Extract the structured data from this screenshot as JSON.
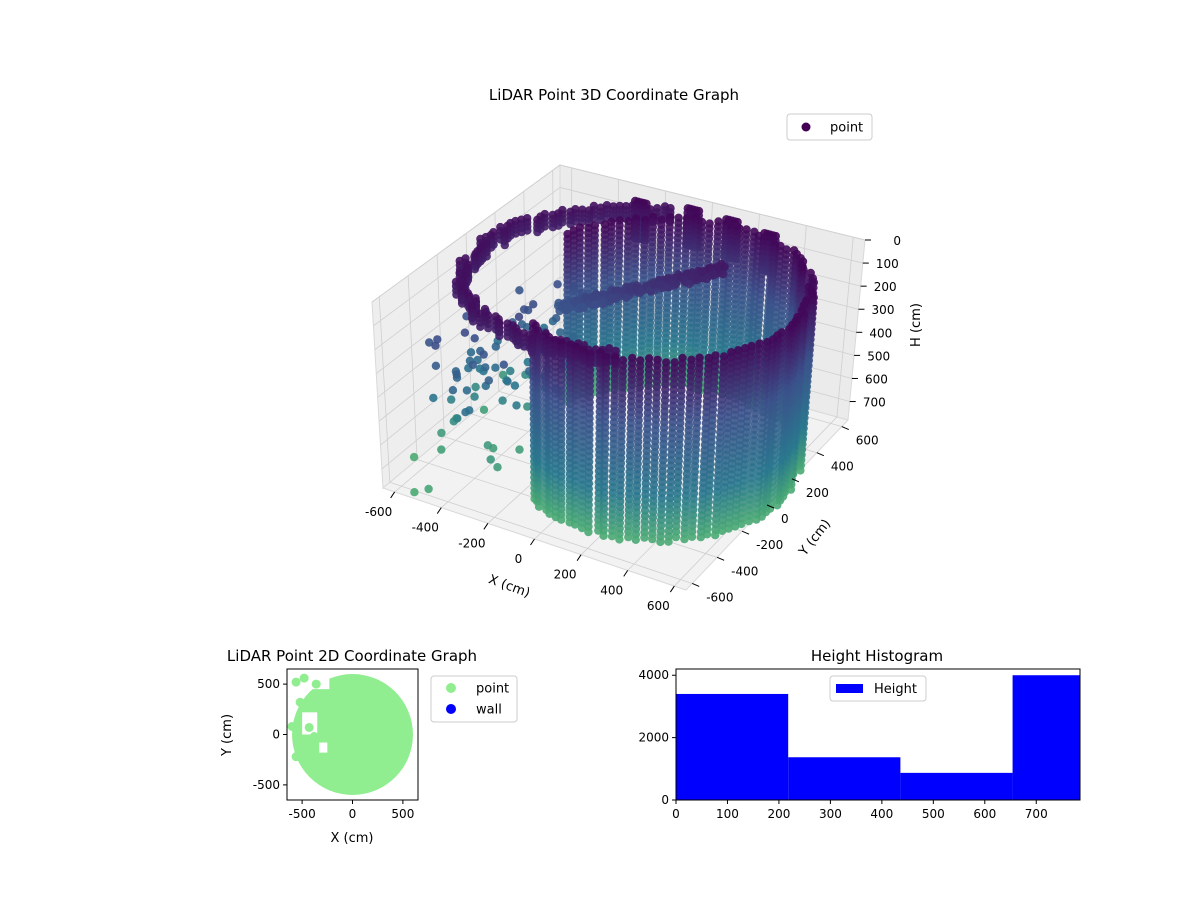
{
  "colors": {
    "viridis_top": "#440154",
    "viridis_mid": "#3b528b",
    "viridis_teal": "#2a788e",
    "viridis_green": "#5ec962",
    "point_2d": "#90ee90",
    "wall_2d": "#0000ff",
    "hist_bar": "#0000ff",
    "pane": "#f2f2f2"
  },
  "chart_data": [
    {
      "type": "scatter3d",
      "title": "LiDAR Point 3D Coordinate Graph",
      "xlabel": "X (cm)",
      "ylabel": "Y (cm)",
      "zlabel": "H (cm)",
      "xlim": [
        -650,
        650
      ],
      "ylim": [
        -650,
        650
      ],
      "zlim": [
        0,
        780
      ],
      "z_inverted": true,
      "xticks": [
        -600,
        -400,
        -200,
        0,
        200,
        400,
        600
      ],
      "yticks": [
        -600,
        -400,
        -200,
        0,
        200,
        400,
        600
      ],
      "zticks": [
        0,
        100,
        200,
        300,
        400,
        500,
        600,
        700
      ],
      "legend": {
        "position": "top-right",
        "entries": [
          "point"
        ]
      },
      "grid": true,
      "colormap": "viridis",
      "structure": {
        "wall": {
          "center": [
            150,
            20
          ],
          "radius": 550,
          "arc_deg": [
            -120,
            160
          ],
          "h_range": [
            0,
            780
          ]
        },
        "upper_ring": {
          "center": [
            -60,
            60
          ],
          "radius": 560,
          "arc_deg": [
            100,
            300
          ],
          "h": 50
        },
        "ramp": {
          "from": [
            -350,
            120,
            280
          ],
          "to": [
            200,
            350,
            80
          ]
        }
      },
      "outliers": [
        [
          -560,
          -120,
          620
        ],
        [
          -600,
          -300,
          700
        ],
        [
          -500,
          150,
          640
        ],
        [
          -420,
          -60,
          560
        ],
        [
          -380,
          200,
          520
        ],
        [
          -650,
          -420,
          760
        ],
        [
          -520,
          -640,
          760
        ],
        [
          -470,
          -620,
          740
        ]
      ]
    },
    {
      "type": "scatter",
      "title": "LiDAR Point 2D Coordinate Graph",
      "xlabel": "X (cm)",
      "ylabel": "Y (cm)",
      "xlim": [
        -650,
        650
      ],
      "ylim": [
        -650,
        650
      ],
      "xticks": [
        -500,
        0,
        500
      ],
      "yticks": [
        -500,
        0,
        500
      ],
      "legend": {
        "position": "outside-right",
        "entries": [
          "point",
          "wall"
        ]
      },
      "series": [
        {
          "name": "point",
          "shape": "disk",
          "center": [
            0,
            0
          ],
          "radius": 600
        },
        {
          "name": "wall",
          "points": []
        }
      ]
    },
    {
      "type": "histogram",
      "title": "Height Histogram",
      "xlim": [
        0,
        785
      ],
      "ylim": [
        0,
        4200
      ],
      "xticks": [
        0,
        100,
        200,
        300,
        400,
        500,
        600,
        700
      ],
      "yticks": [
        0,
        2000,
        4000
      ],
      "legend": {
        "position": "top-center",
        "entries": [
          "Height"
        ]
      },
      "bins": [
        0,
        218,
        436,
        654,
        785
      ],
      "values": [
        3400,
        1370,
        870,
        4000
      ]
    }
  ]
}
